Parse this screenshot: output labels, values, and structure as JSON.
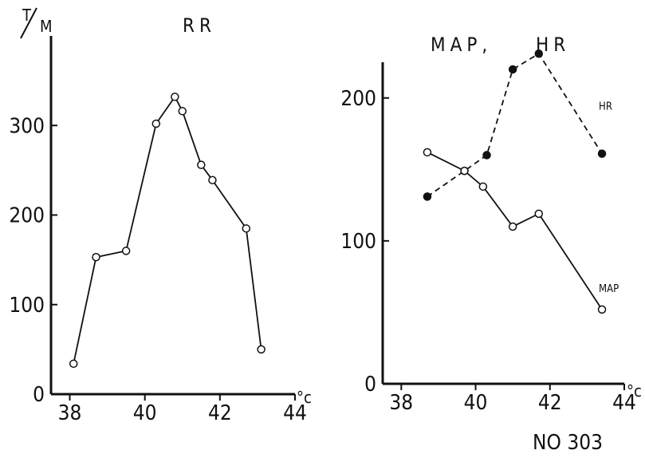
{
  "chart_data": [
    {
      "type": "line",
      "title": "RR",
      "ylabel": "T/M",
      "ylabel_top": "T",
      "ylabel_bottom": "M",
      "xunit": "°c",
      "xlim": [
        37.5,
        44
      ],
      "ylim": [
        0,
        400
      ],
      "xticks": [
        38,
        40,
        42,
        44
      ],
      "yticks": [
        0,
        100,
        200,
        300
      ],
      "series": [
        {
          "name": "",
          "marker": "open",
          "line": "solid",
          "x": [
            38.1,
            38.7,
            39.5,
            40.3,
            40.8,
            41.0,
            41.5,
            41.8,
            42.7,
            43.1
          ],
          "y": [
            34,
            153,
            160,
            302,
            332,
            316,
            256,
            239,
            185,
            50
          ]
        }
      ]
    },
    {
      "type": "line",
      "title_left": "MAP,",
      "title_right": "HR",
      "xunit": "°c",
      "xlim": [
        37.5,
        44
      ],
      "ylim": [
        0,
        225
      ],
      "xticks": [
        38,
        40,
        42,
        44
      ],
      "yticks": [
        0,
        100,
        200
      ],
      "series": [
        {
          "name": "HR",
          "marker": "filled",
          "line": "dashed",
          "x": [
            38.7,
            39.7,
            40.3,
            41.0,
            41.7,
            43.4
          ],
          "y": [
            131,
            149,
            160,
            220,
            231,
            161
          ]
        },
        {
          "name": "MAP",
          "marker": "open",
          "line": "solid",
          "x": [
            38.7,
            39.7,
            40.2,
            41.0,
            41.7,
            43.4
          ],
          "y": [
            162,
            149,
            138,
            110,
            119,
            52
          ]
        }
      ]
    }
  ],
  "footer": {
    "text": "NO 303"
  }
}
